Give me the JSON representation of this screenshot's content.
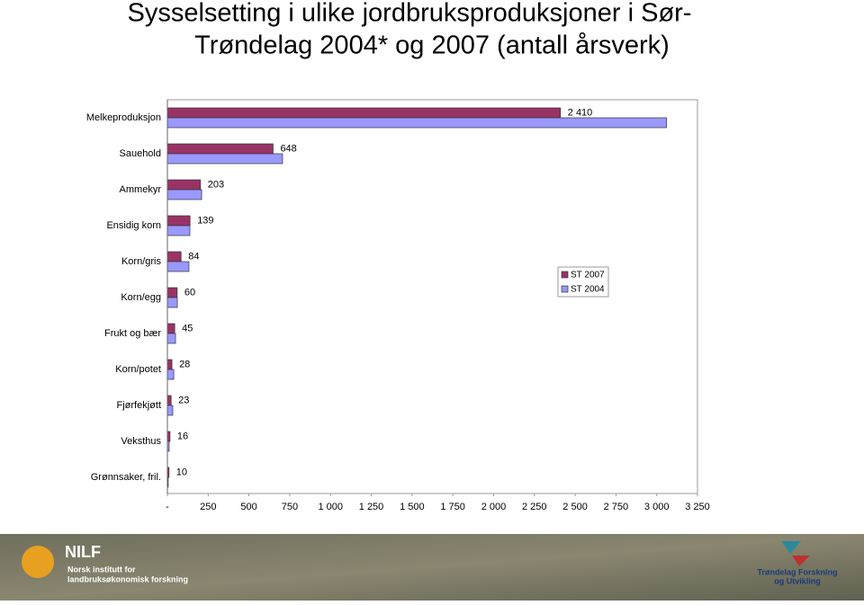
{
  "chart_data": {
    "type": "hbar",
    "title_lines": [
      "Sysselsetting i ulike jordbruksproduksjoner i Sør-",
      "Trøndelag 2004* og 2007 (antall årsverk)"
    ],
    "categories": [
      "Melkeproduksjon",
      "Sauehold",
      "Ammekyr",
      "Ensidig korn",
      "Korn/gris",
      "Korn/egg",
      "Frukt og bær",
      "Korn/potet",
      "Fjørfekjøtt",
      "Veksthus",
      "Grønnsaker, fril."
    ],
    "series": [
      {
        "name": "ST 2007",
        "color": "#993366",
        "values": [
          2410,
          648,
          203,
          139,
          84,
          60,
          45,
          28,
          23,
          16,
          10
        ],
        "value_labels": [
          "2 410",
          "648",
          "203",
          "139",
          "84",
          "60",
          "45",
          "28",
          "23",
          "16",
          "10"
        ]
      },
      {
        "name": "ST 2004",
        "color": "#9999ff",
        "values": [
          3060,
          706,
          210,
          138,
          132,
          61,
          50,
          39,
          33,
          11,
          5
        ]
      }
    ],
    "xlim": [
      0,
      3250
    ],
    "xticks": [
      {
        "value": 0,
        "label": "-"
      },
      250,
      500,
      750,
      {
        "value": 1000,
        "label": "1 000"
      },
      {
        "value": 1250,
        "label": "1 250"
      },
      {
        "value": 1500,
        "label": "1 500"
      },
      {
        "value": 1750,
        "label": "1 750"
      },
      {
        "value": 2000,
        "label": "2 000"
      },
      {
        "value": 2250,
        "label": "2 250"
      },
      {
        "value": 2500,
        "label": "2 500"
      },
      {
        "value": 2750,
        "label": "2 750"
      },
      {
        "value": 3000,
        "label": "3 000"
      },
      {
        "value": 3250,
        "label": "3 250"
      }
    ],
    "legend": "right",
    "grid": false
  },
  "footer": {
    "left_logo": "NILF",
    "left_lines": [
      "Norsk institutt for",
      "landbruksøkonomisk forskning"
    ],
    "right_lines": [
      "Trøndelag Forskning",
      "og Utvikling"
    ]
  }
}
